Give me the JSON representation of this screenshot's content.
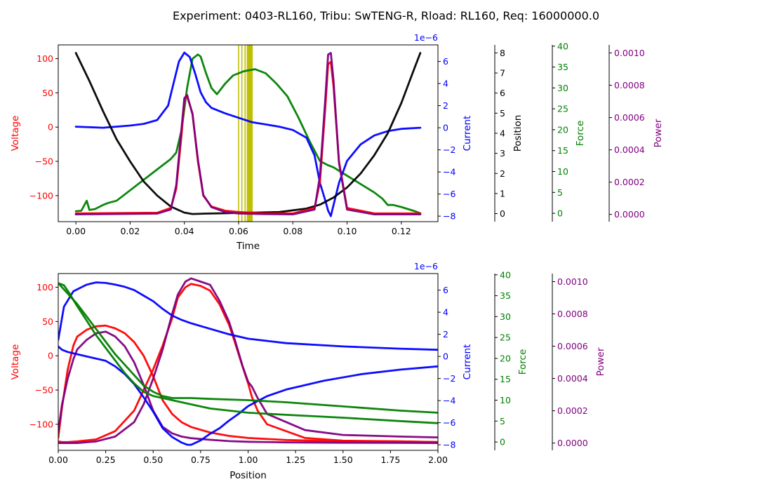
{
  "figure": {
    "title": "Experiment: 0403-RL160, Tribu: SwTENG-R, Rload: RL160, Req: 16000000.0"
  },
  "colors": {
    "voltage": "#ff0000",
    "current": "#0000ff",
    "position": "#000000",
    "force": "#008000",
    "power": "#800080",
    "marker": "#bfbf00"
  },
  "chart_data": [
    {
      "type": "line",
      "name": "time-domain",
      "xlabel": "Time",
      "xlim": [
        -0.0065,
        0.1335
      ],
      "xticks": [
        0.0,
        0.02,
        0.04,
        0.06,
        0.08,
        0.1,
        0.12
      ],
      "xtick_labels": [
        "0.00",
        "0.02",
        "0.04",
        "0.06",
        "0.08",
        "0.10",
        "0.12"
      ],
      "marker_lines_x": [
        0.06,
        0.0612,
        0.0624,
        0.0634,
        0.0641,
        0.0648
      ],
      "axes": {
        "voltage": {
          "label": "Voltage",
          "lim": [
            -138,
            120
          ],
          "ticks": [
            -100,
            -50,
            0,
            50,
            100
          ],
          "tick_labels": [
            "−100",
            "−50",
            "0",
            "50",
            "100"
          ]
        },
        "current": {
          "label": "Current",
          "offset_text": "1e−6",
          "lim": [
            -8.5,
            7.5
          ],
          "ticks": [
            -8,
            -6,
            -4,
            -2,
            0,
            2,
            4,
            6
          ],
          "tick_labels": [
            "−8",
            "−6",
            "−4",
            "−2",
            "0",
            "2",
            "4",
            "6"
          ]
        },
        "position": {
          "label": "Position",
          "lim": [
            -0.4,
            8.4
          ],
          "ticks": [
            0,
            1,
            2,
            3,
            4,
            5,
            6,
            7,
            8
          ],
          "tick_labels": [
            "0",
            "1",
            "2",
            "3",
            "4",
            "5",
            "6",
            "7",
            "8"
          ]
        },
        "force": {
          "label": "Force",
          "lim": [
            -2,
            40.3
          ],
          "ticks": [
            0,
            5,
            10,
            15,
            20,
            25,
            30,
            35,
            40
          ],
          "tick_labels": [
            "0",
            "5",
            "10",
            "15",
            "20",
            "25",
            "30",
            "35",
            "40"
          ]
        },
        "power": {
          "label": "Power",
          "lim": [
            -4.5e-05,
            0.00105
          ],
          "ticks": [
            0,
            0.0002,
            0.0004,
            0.0006,
            0.0008,
            0.001
          ],
          "tick_labels": [
            "0.0000",
            "0.0002",
            "0.0004",
            "0.0006",
            "0.0008",
            "0.0010"
          ]
        }
      },
      "series": [
        {
          "name": "Position",
          "axis": "position",
          "x": [
            0.0,
            0.005,
            0.01,
            0.015,
            0.02,
            0.025,
            0.03,
            0.035,
            0.04,
            0.043,
            0.048,
            0.055,
            0.065,
            0.075,
            0.085,
            0.09,
            0.095,
            0.1,
            0.105,
            0.11,
            0.115,
            0.12,
            0.125,
            0.127
          ],
          "y": [
            8.0,
            6.6,
            5.1,
            3.7,
            2.6,
            1.6,
            0.9,
            0.35,
            0.05,
            -0.02,
            0.0,
            0.02,
            0.05,
            0.08,
            0.25,
            0.45,
            0.8,
            1.3,
            2.0,
            2.9,
            4.0,
            5.5,
            7.3,
            8.0
          ]
        },
        {
          "name": "Force",
          "axis": "force",
          "x": [
            0.0,
            0.002,
            0.004,
            0.005,
            0.007,
            0.01,
            0.012,
            0.015,
            0.02,
            0.025,
            0.03,
            0.035,
            0.037,
            0.039,
            0.041,
            0.043,
            0.045,
            0.046,
            0.048,
            0.05,
            0.052,
            0.055,
            0.058,
            0.062,
            0.066,
            0.07,
            0.074,
            0.078,
            0.082,
            0.086,
            0.09,
            0.093,
            0.095,
            0.1,
            0.105,
            0.11,
            0.113,
            0.115,
            0.117,
            0.12,
            0.125,
            0.127
          ],
          "y": [
            0.5,
            0.6,
            3.0,
            0.8,
            1.0,
            2.0,
            2.5,
            3.0,
            5.5,
            8.0,
            10.5,
            13.0,
            14.5,
            20.0,
            30.0,
            37.0,
            38.0,
            37.5,
            33.5,
            30.0,
            28.5,
            31.0,
            33.0,
            34.0,
            34.5,
            33.5,
            31.0,
            28.0,
            23.0,
            17.5,
            12.5,
            11.5,
            11.0,
            9.0,
            7.0,
            5.0,
            3.5,
            2.0,
            2.0,
            1.5,
            0.5,
            0.0
          ]
        },
        {
          "name": "Current",
          "axis": "current",
          "x": [
            0.0,
            0.01,
            0.02,
            0.025,
            0.03,
            0.034,
            0.036,
            0.038,
            0.04,
            0.042,
            0.044,
            0.046,
            0.048,
            0.05,
            0.055,
            0.06,
            0.065,
            0.07,
            0.075,
            0.08,
            0.085,
            0.088,
            0.09,
            0.092,
            0.093,
            0.094,
            0.095,
            0.097,
            0.1,
            0.105,
            0.11,
            0.115,
            0.12,
            0.127
          ],
          "y": [
            0.1,
            0.0,
            0.2,
            0.35,
            0.7,
            2.0,
            4.0,
            6.0,
            6.8,
            6.4,
            4.9,
            3.2,
            2.3,
            1.8,
            1.3,
            0.9,
            0.5,
            0.3,
            0.1,
            -0.2,
            -0.9,
            -2.5,
            -5.0,
            -6.6,
            -7.5,
            -8.0,
            -7.0,
            -5.0,
            -3.0,
            -1.5,
            -0.7,
            -0.3,
            -0.1,
            0.0
          ]
        },
        {
          "name": "Voltage",
          "axis": "voltage",
          "x": [
            0.0,
            0.03,
            0.035,
            0.037,
            0.039,
            0.04,
            0.041,
            0.043,
            0.045,
            0.047,
            0.05,
            0.055,
            0.06,
            0.07,
            0.08,
            0.088,
            0.09,
            0.092,
            0.093,
            0.094,
            0.095,
            0.097,
            0.1,
            0.11,
            0.127
          ],
          "y": [
            -126,
            -125,
            -118,
            -90,
            -10,
            40,
            45,
            20,
            -50,
            -100,
            -116,
            -122,
            -124,
            -126,
            -126,
            -118,
            -80,
            30,
            92,
            95,
            60,
            -50,
            -118,
            -126,
            -126
          ]
        },
        {
          "name": "Power",
          "axis": "power",
          "x": [
            0.0,
            0.03,
            0.035,
            0.037,
            0.039,
            0.04,
            0.041,
            0.043,
            0.045,
            0.047,
            0.05,
            0.055,
            0.06,
            0.07,
            0.08,
            0.088,
            0.09,
            0.092,
            0.093,
            0.094,
            0.095,
            0.097,
            0.1,
            0.11,
            0.127
          ],
          "y": [
            0.0,
            5e-06,
            3e-05,
            0.00018,
            0.00054,
            0.00072,
            0.00074,
            0.00062,
            0.00034,
            0.00012,
            4.5e-05,
            1.5e-05,
            6e-06,
            2e-06,
            0.0,
            3e-05,
            0.00024,
            0.00072,
            0.00099,
            0.001,
            0.00083,
            0.00032,
            3e-05,
            0.0,
            0.0
          ]
        }
      ]
    },
    {
      "type": "line",
      "name": "position-domain",
      "xlabel": "Position",
      "xlim": [
        0.0,
        2.0
      ],
      "xticks": [
        0.0,
        0.25,
        0.5,
        0.75,
        1.0,
        1.25,
        1.5,
        1.75,
        2.0
      ],
      "xtick_labels": [
        "0.00",
        "0.25",
        "0.50",
        "0.75",
        "1.00",
        "1.25",
        "1.50",
        "1.75",
        "2.00"
      ],
      "axes": {
        "voltage": {
          "label": "Voltage",
          "lim": [
            -138,
            120
          ],
          "ticks": [
            -100,
            -50,
            0,
            50,
            100
          ],
          "tick_labels": [
            "−100",
            "−50",
            "0",
            "50",
            "100"
          ]
        },
        "current": {
          "label": "Current",
          "offset_text": "1e−6",
          "lim": [
            -8.5,
            7.5
          ],
          "ticks": [
            -8,
            -6,
            -4,
            -2,
            0,
            2,
            4,
            6
          ],
          "tick_labels": [
            "−8",
            "−6",
            "−4",
            "−2",
            "0",
            "2",
            "4",
            "6"
          ]
        },
        "force": {
          "label": "Force",
          "lim": [
            -2,
            40.3
          ],
          "ticks": [
            0,
            5,
            10,
            15,
            20,
            25,
            30,
            35,
            40
          ],
          "tick_labels": [
            "0",
            "5",
            "10",
            "15",
            "20",
            "25",
            "30",
            "35",
            "40"
          ]
        },
        "power": {
          "label": "Power",
          "lim": [
            -4.5e-05,
            0.00105
          ],
          "ticks": [
            0,
            0.0002,
            0.0004,
            0.0006,
            0.0008,
            0.001
          ],
          "tick_labels": [
            "0.0000",
            "0.0002",
            "0.0004",
            "0.0006",
            "0.0008",
            "0.0010"
          ]
        }
      },
      "series": [
        {
          "name": "Voltage",
          "axis": "voltage",
          "x": [
            0.0,
            0.02,
            0.05,
            0.08,
            0.1,
            0.15,
            0.2,
            0.25,
            0.3,
            0.35,
            0.4,
            0.45,
            0.5,
            0.55,
            0.6,
            0.65,
            0.7,
            0.8,
            0.9,
            1.0,
            1.2,
            1.5,
            1.8,
            2.0
          ],
          "y": [
            -120,
            -75,
            -20,
            15,
            28,
            38,
            43,
            44,
            40,
            33,
            20,
            0,
            -30,
            -65,
            -85,
            -97,
            -104,
            -112,
            -117,
            -120,
            -123,
            -125,
            -125,
            -126
          ]
        },
        {
          "name": "Voltage",
          "axis": "voltage",
          "x": [
            2.0,
            1.8,
            1.5,
            1.3,
            1.1,
            1.05,
            1.02,
            1.0,
            0.97,
            0.93,
            0.9,
            0.85,
            0.8,
            0.75,
            0.7,
            0.67,
            0.63,
            0.6,
            0.55,
            0.5,
            0.45,
            0.4,
            0.3,
            0.2,
            0.1,
            0.05,
            0.02,
            0.0
          ],
          "y": [
            -126,
            -125,
            -124,
            -120,
            -100,
            -80,
            -60,
            -40,
            -15,
            20,
            45,
            75,
            95,
            102,
            105,
            100,
            85,
            55,
            15,
            -20,
            -50,
            -80,
            -110,
            -122,
            -125,
            -126,
            -126,
            -125
          ]
        },
        {
          "name": "Power",
          "axis": "power",
          "x": [
            0.0,
            0.02,
            0.05,
            0.08,
            0.1,
            0.15,
            0.2,
            0.25,
            0.3,
            0.35,
            0.4,
            0.45,
            0.5,
            0.55,
            0.6,
            0.65,
            0.7,
            0.8,
            0.9,
            1.0,
            1.2,
            1.5,
            1.8,
            2.0
          ],
          "y": [
            7e-05,
            0.00024,
            0.0004,
            0.00052,
            0.00058,
            0.00064,
            0.00068,
            0.00069,
            0.00066,
            0.0006,
            0.0005,
            0.00036,
            0.0002,
            0.0001,
            6e-05,
            4e-05,
            3e-05,
            2e-05,
            1.2e-05,
            8e-06,
            4e-06,
            2e-06,
            1e-06,
            0.0
          ]
        },
        {
          "name": "Power",
          "axis": "power",
          "x": [
            2.0,
            1.8,
            1.5,
            1.3,
            1.1,
            1.05,
            1.02,
            1.0,
            0.97,
            0.93,
            0.9,
            0.85,
            0.8,
            0.75,
            0.7,
            0.67,
            0.63,
            0.6,
            0.55,
            0.5,
            0.45,
            0.4,
            0.3,
            0.2,
            0.1,
            0.05,
            0.02,
            0.0
          ],
          "y": [
            3.5e-05,
            4e-05,
            5e-05,
            8e-05,
            0.00018,
            0.00028,
            0.00035,
            0.00038,
            0.00048,
            0.00064,
            0.00075,
            0.00088,
            0.00098,
            0.001,
            0.00102,
            0.001,
            0.00092,
            0.0008,
            0.00058,
            0.0004,
            0.00024,
            0.00013,
            4e-05,
            1e-05,
            0.0,
            0.0,
            0.0,
            0.0
          ]
        },
        {
          "name": "Current",
          "axis": "current",
          "x": [
            0.0,
            0.03,
            0.08,
            0.15,
            0.2,
            0.25,
            0.3,
            0.35,
            0.4,
            0.45,
            0.5,
            0.55,
            0.6,
            0.65,
            0.7,
            0.8,
            0.9,
            1.0,
            1.2,
            1.5,
            1.8,
            2.0
          ],
          "y": [
            1.5,
            4.5,
            5.9,
            6.5,
            6.7,
            6.65,
            6.5,
            6.3,
            6.0,
            5.5,
            5.0,
            4.3,
            3.7,
            3.3,
            3.0,
            2.5,
            2.0,
            1.6,
            1.2,
            0.9,
            0.7,
            0.6
          ]
        },
        {
          "name": "Current",
          "axis": "current",
          "x": [
            2.0,
            1.8,
            1.6,
            1.4,
            1.2,
            1.1,
            1.0,
            0.95,
            0.9,
            0.85,
            0.8,
            0.75,
            0.7,
            0.68,
            0.65,
            0.6,
            0.55,
            0.5,
            0.45,
            0.4,
            0.35,
            0.3,
            0.25,
            0.2,
            0.1,
            0.05,
            0.02,
            0.0
          ],
          "y": [
            -0.9,
            -1.2,
            -1.6,
            -2.2,
            -3.0,
            -3.6,
            -4.5,
            -5.2,
            -5.8,
            -6.5,
            -7.0,
            -7.6,
            -8.0,
            -8.0,
            -7.8,
            -7.3,
            -6.5,
            -5.0,
            -3.7,
            -2.5,
            -1.6,
            -0.9,
            -0.4,
            -0.2,
            0.2,
            0.4,
            0.6,
            0.9
          ]
        },
        {
          "name": "Force",
          "axis": "force",
          "x": [
            0.0,
            0.05,
            0.1,
            0.15,
            0.2,
            0.25,
            0.3,
            0.35,
            0.4,
            0.45,
            0.5,
            0.55,
            0.6,
            0.7,
            0.8,
            1.0,
            1.2,
            1.5,
            1.8,
            2.0
          ],
          "y": [
            38.0,
            35.5,
            33.0,
            30.0,
            27.0,
            24.0,
            21.0,
            18.5,
            16.0,
            13.5,
            12.0,
            11.0,
            10.5,
            10.5,
            10.3,
            10.0,
            9.5,
            8.5,
            7.5,
            7.0
          ]
        },
        {
          "name": "Force",
          "axis": "force",
          "x": [
            2.0,
            1.8,
            1.5,
            1.2,
            1.0,
            0.8,
            0.7,
            0.6,
            0.55,
            0.5,
            0.45,
            0.4,
            0.35,
            0.3,
            0.25,
            0.2,
            0.15,
            0.1,
            0.06,
            0.03,
            0.0
          ],
          "y": [
            4.5,
            5.0,
            5.8,
            6.5,
            7.0,
            8.0,
            9.0,
            10.0,
            10.5,
            11.0,
            12.0,
            14.0,
            16.5,
            19.5,
            22.5,
            25.5,
            29.0,
            32.5,
            35.5,
            37.5,
            38.0
          ]
        }
      ]
    }
  ]
}
